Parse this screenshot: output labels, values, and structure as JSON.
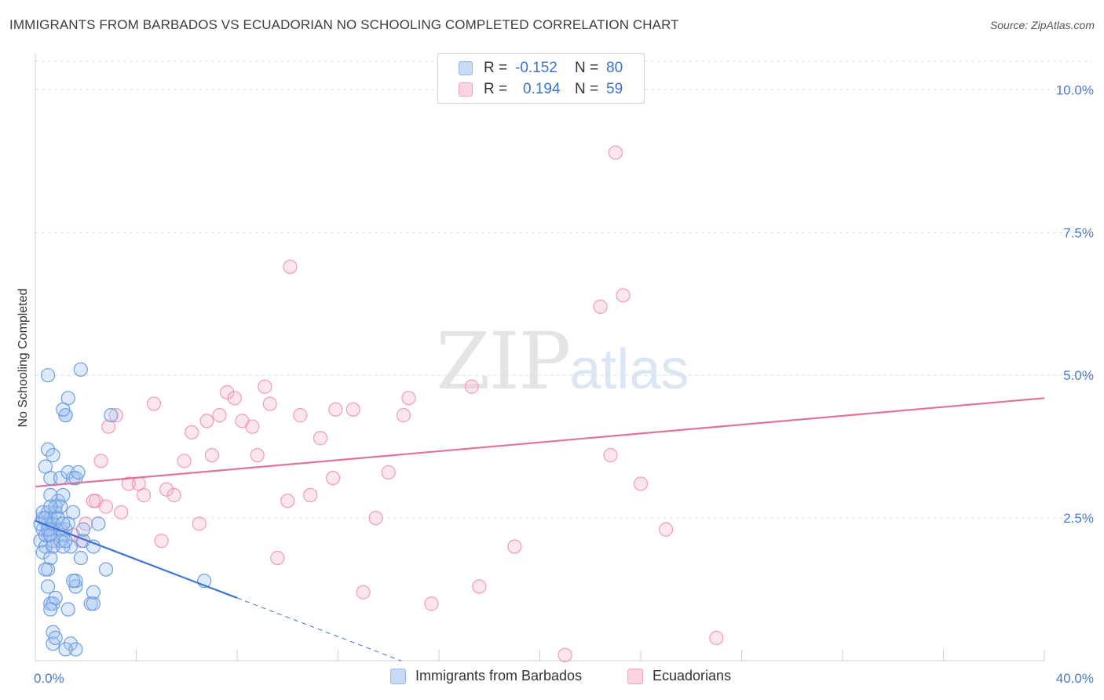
{
  "title": "IMMIGRANTS FROM BARBADOS VS ECUADORIAN NO SCHOOLING COMPLETED CORRELATION CHART",
  "source": "Source: ZipAtlas.com",
  "watermark": {
    "zip": "ZIP",
    "atlas": "atlas"
  },
  "legend": {
    "r_label": "R =",
    "n_label": "N =",
    "rows": [
      {
        "r": "-0.152",
        "n": "80",
        "color": "#8fb4ea",
        "fill": "#c7daf6"
      },
      {
        "r": "0.194",
        "n": "59",
        "color": "#f0a3bd",
        "fill": "#fbd4e1"
      }
    ]
  },
  "bottom_legend": [
    "Immigrants from Barbados",
    "Ecuadorians"
  ],
  "colors": {
    "blue": "#3a73d0",
    "blue_point": "#6e9ee0",
    "pink": "#e1739b",
    "pink_point": "#ef9ab8",
    "grid": "#dddddd"
  },
  "chart_data": {
    "type": "scatter",
    "title": "IMMIGRANTS FROM BARBADOS VS ECUADORIAN NO SCHOOLING COMPLETED CORRELATION CHART",
    "xlabel": "",
    "ylabel": "No Schooling Completed",
    "xlim": [
      0,
      40
    ],
    "ylim": [
      0,
      10.5
    ],
    "x_tick_labels": [
      {
        "v": 0,
        "label": "0.0%"
      },
      {
        "v": 40,
        "label": "40.0%"
      }
    ],
    "y_ticks": [
      {
        "v": 2.5,
        "label": "2.5%"
      },
      {
        "v": 5,
        "label": "5.0%"
      },
      {
        "v": 7.5,
        "label": "7.5%"
      },
      {
        "v": 10,
        "label": "10.0%"
      }
    ],
    "legend_position": "top-center",
    "series": [
      {
        "name": "Immigrants from Barbados",
        "r": -0.152,
        "n": 80,
        "trend": {
          "x": [
            0,
            8
          ],
          "y": [
            2.45,
            1.1
          ],
          "dashed_to": [
            14.5,
            0
          ]
        },
        "points": [
          [
            0.2,
            2.1
          ],
          [
            0.3,
            2.3
          ],
          [
            0.3,
            2.5
          ],
          [
            0.4,
            2.0
          ],
          [
            0.4,
            2.2
          ],
          [
            0.5,
            2.4
          ],
          [
            0.5,
            2.6
          ],
          [
            0.6,
            2.3
          ],
          [
            0.6,
            2.5
          ],
          [
            0.7,
            2.1
          ],
          [
            0.2,
            2.4
          ],
          [
            0.3,
            2.6
          ],
          [
            0.4,
            2.5
          ],
          [
            0.5,
            2.3
          ],
          [
            0.6,
            2.2
          ],
          [
            0.7,
            2.4
          ],
          [
            0.8,
            2.6
          ],
          [
            0.9,
            2.5
          ],
          [
            1.0,
            2.3
          ],
          [
            1.1,
            2.2
          ],
          [
            0.3,
            1.9
          ],
          [
            0.5,
            1.6
          ],
          [
            0.6,
            1.8
          ],
          [
            0.7,
            2.0
          ],
          [
            0.8,
            2.7
          ],
          [
            0.9,
            2.8
          ],
          [
            1.0,
            2.1
          ],
          [
            1.2,
            2.3
          ],
          [
            1.3,
            2.4
          ],
          [
            1.4,
            2.0
          ],
          [
            0.4,
            3.4
          ],
          [
            0.5,
            3.7
          ],
          [
            0.6,
            3.2
          ],
          [
            0.7,
            3.6
          ],
          [
            1.0,
            3.2
          ],
          [
            1.3,
            3.3
          ],
          [
            1.5,
            3.2
          ],
          [
            1.6,
            3.2
          ],
          [
            1.7,
            3.3
          ],
          [
            0.6,
            2.9
          ],
          [
            1.1,
            2.9
          ],
          [
            1.0,
            2.7
          ],
          [
            1.5,
            2.6
          ],
          [
            1.9,
            2.1
          ],
          [
            2.3,
            2.0
          ],
          [
            1.9,
            2.3
          ],
          [
            1.8,
            1.8
          ],
          [
            2.5,
            2.4
          ],
          [
            0.5,
            5.0
          ],
          [
            1.2,
            4.3
          ],
          [
            1.2,
            4.3
          ],
          [
            1.1,
            4.4
          ],
          [
            1.1,
            2.0
          ],
          [
            1.2,
            2.1
          ],
          [
            3.0,
            4.3
          ],
          [
            0.6,
            1.0
          ],
          [
            0.5,
            1.3
          ],
          [
            0.7,
            1.0
          ],
          [
            0.8,
            1.1
          ],
          [
            0.6,
            0.9
          ],
          [
            1.3,
            0.9
          ],
          [
            1.6,
            1.3
          ],
          [
            1.6,
            1.4
          ],
          [
            1.5,
            1.4
          ],
          [
            2.2,
            1.0
          ],
          [
            2.3,
            1.0
          ],
          [
            2.3,
            1.2
          ],
          [
            2.8,
            1.6
          ],
          [
            6.7,
            1.4
          ],
          [
            0.7,
            0.5
          ],
          [
            0.7,
            0.3
          ],
          [
            0.8,
            0.4
          ],
          [
            1.4,
            0.3
          ],
          [
            1.6,
            0.2
          ],
          [
            1.2,
            0.2
          ],
          [
            0.4,
            1.6
          ],
          [
            0.6,
            2.7
          ],
          [
            1.1,
            2.4
          ],
          [
            1.8,
            5.1
          ],
          [
            1.3,
            4.6
          ]
        ]
      },
      {
        "name": "Ecuadorians",
        "r": 0.194,
        "n": 59,
        "trend": {
          "x": [
            0,
            40
          ],
          "y": [
            3.05,
            4.6
          ]
        },
        "points": [
          [
            0.5,
            2.2
          ],
          [
            0.7,
            2.0
          ],
          [
            1.0,
            2.3
          ],
          [
            1.5,
            2.2
          ],
          [
            1.8,
            2.1
          ],
          [
            2.0,
            2.4
          ],
          [
            2.4,
            2.8
          ],
          [
            2.3,
            2.8
          ],
          [
            2.6,
            3.5
          ],
          [
            2.8,
            2.7
          ],
          [
            2.9,
            4.1
          ],
          [
            3.2,
            4.3
          ],
          [
            3.4,
            2.6
          ],
          [
            3.7,
            3.1
          ],
          [
            4.1,
            3.1
          ],
          [
            4.3,
            2.9
          ],
          [
            4.7,
            4.5
          ],
          [
            5.0,
            2.1
          ],
          [
            5.2,
            3.0
          ],
          [
            5.5,
            2.9
          ],
          [
            5.9,
            3.5
          ],
          [
            6.2,
            4.0
          ],
          [
            6.5,
            2.4
          ],
          [
            6.8,
            4.2
          ],
          [
            7.0,
            3.6
          ],
          [
            7.3,
            4.3
          ],
          [
            7.6,
            4.7
          ],
          [
            7.9,
            4.6
          ],
          [
            8.2,
            4.2
          ],
          [
            8.6,
            4.1
          ],
          [
            8.8,
            3.6
          ],
          [
            9.1,
            4.8
          ],
          [
            9.3,
            4.5
          ],
          [
            9.6,
            1.8
          ],
          [
            10.0,
            2.8
          ],
          [
            10.1,
            6.9
          ],
          [
            10.5,
            4.3
          ],
          [
            10.9,
            2.9
          ],
          [
            11.3,
            3.9
          ],
          [
            11.8,
            3.2
          ],
          [
            11.9,
            4.4
          ],
          [
            12.6,
            4.4
          ],
          [
            13.0,
            1.2
          ],
          [
            13.5,
            2.5
          ],
          [
            14.0,
            3.3
          ],
          [
            14.6,
            4.3
          ],
          [
            14.8,
            4.6
          ],
          [
            15.7,
            1.0
          ],
          [
            17.3,
            4.8
          ],
          [
            17.6,
            1.3
          ],
          [
            19.0,
            2.0
          ],
          [
            21.0,
            0.1
          ],
          [
            22.4,
            6.2
          ],
          [
            22.8,
            3.6
          ],
          [
            23.0,
            8.9
          ],
          [
            23.3,
            6.4
          ],
          [
            24.0,
            3.1
          ],
          [
            25.0,
            2.3
          ],
          [
            27.0,
            0.4
          ]
        ]
      }
    ]
  }
}
